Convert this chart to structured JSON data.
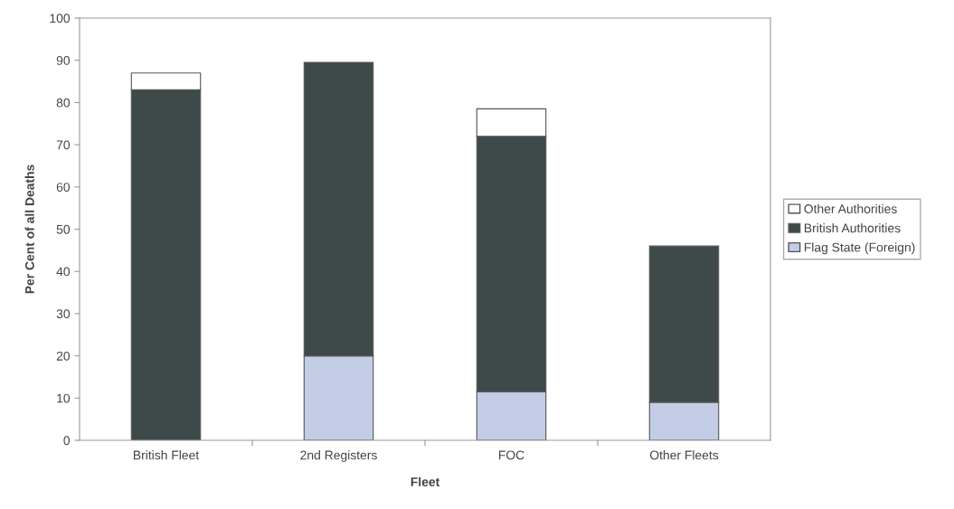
{
  "chart_data": {
    "type": "bar",
    "stacked": true,
    "xlabel": "Fleet",
    "ylabel": "Per Cent of all Deaths",
    "categories": [
      "British Fleet",
      "2nd Registers",
      "FOC",
      "Other Fleets"
    ],
    "series": [
      {
        "name": "Flag State (Foreign)",
        "color": "#c3cde6",
        "values": [
          null,
          20,
          11.5,
          9
        ]
      },
      {
        "name": "British Authorities",
        "color": "#3e4a4a",
        "values": [
          83,
          69.5,
          60.5,
          37
        ]
      },
      {
        "name": "Other Authorities",
        "color": "#ffffff",
        "values": [
          4,
          null,
          6.5,
          null
        ]
      }
    ],
    "ylim": [
      0,
      100
    ],
    "yticks": [
      0,
      10,
      20,
      30,
      40,
      50,
      60,
      70,
      80,
      90,
      100
    ],
    "grid": false,
    "legend": "right"
  }
}
